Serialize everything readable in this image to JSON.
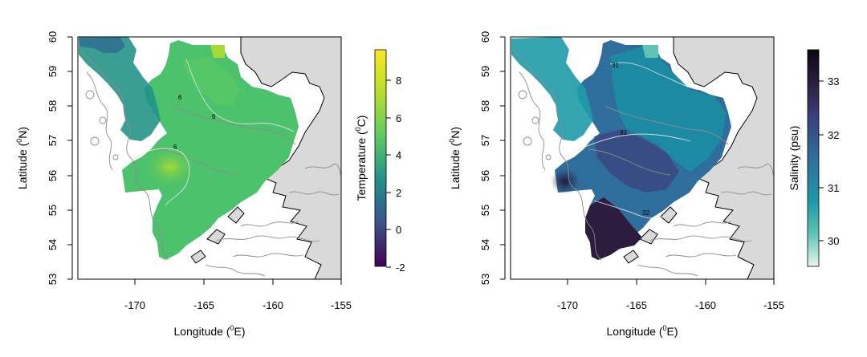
{
  "panels": [
    {
      "id": "temperature",
      "xlabel": "Longitude (",
      "xlabel_sup": "0",
      "xlabel_end": "E)",
      "ylabel": "Latitude (",
      "ylabel_sup": "0",
      "ylabel_end": "N)",
      "x_ticks": [
        "-170",
        "-165",
        "-160",
        "-155"
      ],
      "y_ticks": [
        "53",
        "54",
        "55",
        "56",
        "57",
        "58",
        "59",
        "60"
      ],
      "colorbar": {
        "label": "Temperature (",
        "label_sup": "0",
        "label_end": "C)",
        "ticks": [
          "-2",
          "0",
          "2",
          "4",
          "6",
          "8"
        ],
        "palette": [
          "#440154",
          "#3b528b",
          "#21908c",
          "#5ec962",
          "#b5de2b",
          "#fde725"
        ]
      },
      "contour_labels": [
        "6",
        "6",
        "6"
      ]
    },
    {
      "id": "salinity",
      "xlabel": "Longitude (",
      "xlabel_sup": "0",
      "xlabel_end": "E)",
      "ylabel": "Latitude (",
      "ylabel_sup": "0",
      "ylabel_end": "N)",
      "x_ticks": [
        "-170",
        "-165",
        "-160",
        "-155"
      ],
      "y_ticks": [
        "53",
        "54",
        "55",
        "56",
        "57",
        "58",
        "59",
        "60"
      ],
      "colorbar": {
        "label": "Salinity (psu)",
        "ticks": [
          "30",
          "31",
          "32",
          "33"
        ],
        "palette": [
          "#e8f6ee",
          "#5fc4b4",
          "#1d9aa8",
          "#2f6e9c",
          "#3a3e7a",
          "#2c1d3e",
          "#0b0812"
        ]
      },
      "contour_labels": [
        "31",
        "32",
        "32"
      ]
    }
  ],
  "colors": {
    "land": "#d9d9d9",
    "coast": "#000000",
    "bathymetry": "#8c8c8c"
  }
}
